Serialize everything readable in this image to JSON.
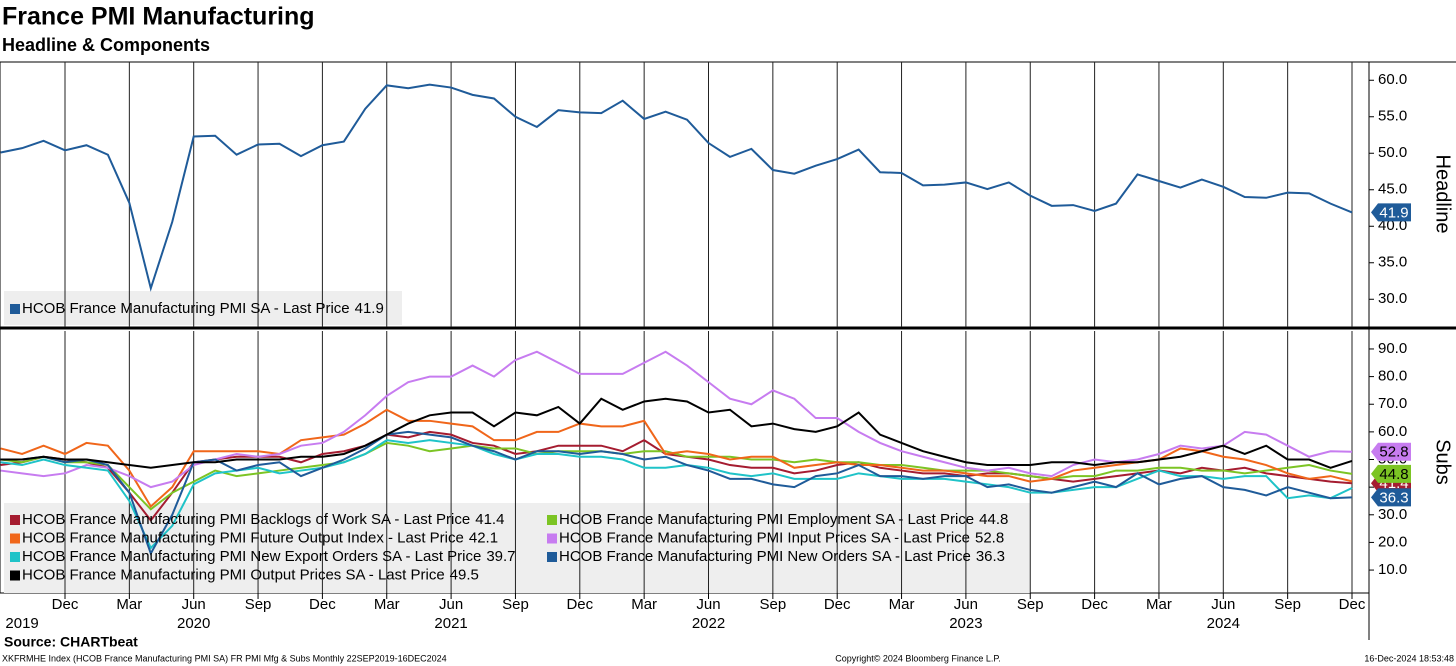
{
  "chart_data": [
    {
      "type": "line",
      "title": "France PMI Manufacturing",
      "subtitle": "Headline & Components",
      "y_axis_label": "Headline",
      "x": [
        "2019-09",
        "2019-10",
        "2019-11",
        "2019-12",
        "2020-01",
        "2020-02",
        "2020-03",
        "2020-04",
        "2020-05",
        "2020-06",
        "2020-07",
        "2020-08",
        "2020-09",
        "2020-10",
        "2020-11",
        "2020-12",
        "2021-01",
        "2021-02",
        "2021-03",
        "2021-04",
        "2021-05",
        "2021-06",
        "2021-07",
        "2021-08",
        "2021-09",
        "2021-10",
        "2021-11",
        "2021-12",
        "2022-01",
        "2022-02",
        "2022-03",
        "2022-04",
        "2022-05",
        "2022-06",
        "2022-07",
        "2022-08",
        "2022-09",
        "2022-10",
        "2022-11",
        "2022-12",
        "2023-01",
        "2023-02",
        "2023-03",
        "2023-04",
        "2023-05",
        "2023-06",
        "2023-07",
        "2023-08",
        "2023-09",
        "2023-10",
        "2023-11",
        "2023-12",
        "2024-01",
        "2024-02",
        "2024-03",
        "2024-04",
        "2024-05",
        "2024-06",
        "2024-07",
        "2024-08",
        "2024-09",
        "2024-10",
        "2024-11",
        "2024-12"
      ],
      "ylim": [
        26.2,
        62.5
      ],
      "yticks": [
        {
          "value": 30,
          "label": "30.0"
        },
        {
          "value": 35,
          "label": "35.0"
        },
        {
          "value": 40,
          "label": "40.0"
        },
        {
          "value": 45,
          "label": "45.0"
        },
        {
          "value": 50,
          "label": "50.0"
        },
        {
          "value": 55,
          "label": "55.0"
        },
        {
          "value": 60,
          "label": "60.0"
        }
      ],
      "series": [
        {
          "name": "HCOB France Manufacturing PMI SA - Last Price",
          "color": "#1f5b99",
          "last_label": true,
          "values": [
            50.1,
            50.7,
            51.7,
            50.4,
            51.1,
            49.8,
            43.2,
            31.5,
            40.6,
            52.3,
            52.4,
            49.8,
            51.2,
            51.3,
            49.6,
            51.1,
            51.6,
            56.1,
            59.3,
            58.9,
            59.4,
            59.0,
            58.0,
            57.5,
            55.0,
            53.6,
            55.9,
            55.6,
            55.5,
            57.2,
            54.7,
            55.7,
            54.6,
            51.4,
            49.5,
            50.6,
            47.7,
            47.2,
            48.3,
            49.2,
            50.5,
            47.4,
            47.3,
            45.6,
            45.7,
            46.0,
            45.1,
            46.0,
            44.2,
            42.8,
            42.9,
            42.1,
            43.1,
            47.1,
            46.2,
            45.3,
            46.4,
            45.4,
            44.0,
            43.9,
            44.6,
            44.5,
            43.1,
            41.9
          ]
        }
      ]
    },
    {
      "type": "line",
      "y_axis_label": "Subs",
      "x": [
        "2019-09",
        "2019-10",
        "2019-11",
        "2019-12",
        "2020-01",
        "2020-02",
        "2020-03",
        "2020-04",
        "2020-05",
        "2020-06",
        "2020-07",
        "2020-08",
        "2020-09",
        "2020-10",
        "2020-11",
        "2020-12",
        "2021-01",
        "2021-02",
        "2021-03",
        "2021-04",
        "2021-05",
        "2021-06",
        "2021-07",
        "2021-08",
        "2021-09",
        "2021-10",
        "2021-11",
        "2021-12",
        "2022-01",
        "2022-02",
        "2022-03",
        "2022-04",
        "2022-05",
        "2022-06",
        "2022-07",
        "2022-08",
        "2022-09",
        "2022-10",
        "2022-11",
        "2022-12",
        "2023-01",
        "2023-02",
        "2023-03",
        "2023-04",
        "2023-05",
        "2023-06",
        "2023-07",
        "2023-08",
        "2023-09",
        "2023-10",
        "2023-11",
        "2023-12",
        "2024-01",
        "2024-02",
        "2024-03",
        "2024-04",
        "2024-05",
        "2024-06",
        "2024-07",
        "2024-08",
        "2024-09",
        "2024-10",
        "2024-11",
        "2024-12"
      ],
      "xticks": [
        {
          "value": "2019-12",
          "label": "Dec"
        },
        {
          "value": "2020-03",
          "label": "Mar"
        },
        {
          "value": "2020-06",
          "label": "Jun"
        },
        {
          "value": "2020-09",
          "label": "Sep"
        },
        {
          "value": "2020-12",
          "label": "Dec"
        },
        {
          "value": "2021-03",
          "label": "Mar"
        },
        {
          "value": "2021-06",
          "label": "Jun"
        },
        {
          "value": "2021-09",
          "label": "Sep"
        },
        {
          "value": "2021-12",
          "label": "Dec"
        },
        {
          "value": "2022-03",
          "label": "Mar"
        },
        {
          "value": "2022-06",
          "label": "Jun"
        },
        {
          "value": "2022-09",
          "label": "Sep"
        },
        {
          "value": "2022-12",
          "label": "Dec"
        },
        {
          "value": "2023-03",
          "label": "Mar"
        },
        {
          "value": "2023-06",
          "label": "Jun"
        },
        {
          "value": "2023-09",
          "label": "Sep"
        },
        {
          "value": "2023-12",
          "label": "Dec"
        },
        {
          "value": "2024-03",
          "label": "Mar"
        },
        {
          "value": "2024-06",
          "label": "Jun"
        },
        {
          "value": "2024-09",
          "label": "Sep"
        },
        {
          "value": "2024-12",
          "label": "Dec"
        }
      ],
      "xyears": [
        {
          "value": "2019-10",
          "label": "2019"
        },
        {
          "value": "2020-06",
          "label": "2020"
        },
        {
          "value": "2021-06",
          "label": "2021"
        },
        {
          "value": "2022-06",
          "label": "2022"
        },
        {
          "value": "2023-06",
          "label": "2023"
        },
        {
          "value": "2024-06",
          "label": "2024"
        }
      ],
      "ylim": [
        1.7,
        96.5
      ],
      "yticks": [
        {
          "value": 10,
          "label": "10.0"
        },
        {
          "value": 20,
          "label": "20.0"
        },
        {
          "value": 30,
          "label": "30.0"
        },
        {
          "value": 40,
          "label": "40.0"
        },
        {
          "value": 50,
          "label": "50.0"
        },
        {
          "value": 60,
          "label": "60.0"
        },
        {
          "value": 70,
          "label": "70.0"
        },
        {
          "value": 80,
          "label": "80.0"
        },
        {
          "value": 90,
          "label": "90.0"
        }
      ],
      "series": [
        {
          "name": "HCOB France Manufacturing PMI Backlogs of Work SA - Last Price",
          "color": "#a51c30",
          "last_label": true,
          "values": [
            48,
            49,
            51,
            50,
            49,
            47,
            38,
            28,
            38,
            49,
            50,
            51,
            51,
            51,
            49,
            52,
            53,
            55,
            59,
            58,
            60,
            59,
            56,
            55,
            52,
            53,
            55,
            55,
            55,
            53,
            57,
            52,
            51,
            50,
            48,
            47,
            47,
            45,
            46,
            48,
            49,
            47,
            46,
            45,
            45,
            44,
            45,
            45,
            44,
            43,
            42,
            43,
            44,
            45,
            46,
            45,
            47,
            46,
            47,
            45,
            44,
            43,
            42,
            41.4
          ]
        },
        {
          "name": "HCOB France Manufacturing PMI Employment SA - Last Price",
          "color": "#7cc424",
          "last_label": true,
          "values": [
            50,
            49,
            51,
            49,
            49,
            48,
            40,
            32,
            38,
            42,
            46,
            44,
            45,
            46,
            47,
            48,
            49,
            52,
            56,
            55,
            53,
            54,
            55,
            54,
            54,
            52,
            53,
            53,
            53,
            52,
            53,
            53,
            51,
            51,
            51,
            50,
            50,
            49,
            50,
            49,
            49,
            48,
            48,
            47,
            46,
            46,
            46,
            45,
            44,
            43,
            44,
            44,
            46,
            46,
            47,
            47,
            46,
            46,
            45,
            46,
            47,
            48,
            46,
            44.8
          ]
        },
        {
          "name": "HCOB France Manufacturing PMI Future Output Index - Last Price",
          "color": "#f0661a",
          "last_label": false,
          "values": [
            54,
            52,
            55,
            52,
            56,
            55,
            46,
            33,
            40,
            53,
            53,
            53,
            53,
            52,
            57,
            58,
            59,
            63,
            68,
            64,
            64,
            63,
            62,
            57,
            57,
            60,
            60,
            63,
            62,
            62,
            64,
            52,
            53,
            52,
            50,
            51,
            51,
            47,
            48,
            49,
            48,
            48,
            47,
            46,
            46,
            45,
            44,
            44,
            42,
            43,
            46,
            47,
            48,
            49,
            50,
            54,
            53,
            51,
            50,
            48,
            45,
            43,
            44,
            42.1
          ]
        },
        {
          "name": "HCOB France Manufacturing PMI Input Prices SA - Last Price",
          "color": "#c77cf0",
          "last_label": true,
          "values": [
            46,
            45,
            44,
            45,
            48,
            47,
            44,
            40,
            42,
            48,
            50,
            52,
            51,
            52,
            55,
            56,
            60,
            66,
            73,
            78,
            80,
            80,
            84,
            80,
            86,
            89,
            85,
            81,
            81,
            81,
            85,
            89,
            84,
            78,
            72,
            70,
            75,
            72,
            65,
            65,
            60,
            56,
            53,
            51,
            49,
            47,
            46,
            47,
            45,
            44,
            48,
            50,
            49,
            50,
            52,
            55,
            54,
            55,
            60,
            59,
            55,
            51,
            53,
            52.8
          ]
        },
        {
          "name": "HCOB France Manufacturing PMI New Export Orders SA - Last Price",
          "color": "#1fc3c8",
          "last_label": false,
          "values": [
            49,
            48,
            50,
            48,
            47,
            46,
            35,
            18,
            26,
            41,
            45,
            46,
            47,
            45,
            46,
            47,
            49,
            52,
            57,
            56,
            57,
            56,
            55,
            52,
            50,
            52,
            52,
            51,
            51,
            50,
            47,
            47,
            48,
            47,
            45,
            44,
            45,
            43,
            43,
            43,
            45,
            44,
            43,
            43,
            43,
            42,
            41,
            40,
            38,
            38,
            39,
            40,
            40,
            43,
            46,
            44,
            44,
            43,
            44,
            44,
            36,
            37,
            36,
            39.7
          ]
        },
        {
          "name": "HCOB France Manufacturing PMI New Orders SA - Last Price",
          "color": "#1f5b99",
          "last_label": true,
          "values": [
            50,
            50,
            51,
            49,
            50,
            48,
            38,
            16,
            30,
            49,
            50,
            46,
            48,
            49,
            44,
            47,
            50,
            54,
            59,
            60,
            59,
            58,
            55,
            53,
            50,
            53,
            53,
            52,
            53,
            52,
            50,
            51,
            48,
            46,
            43,
            43,
            41,
            40,
            44,
            45,
            48,
            44,
            44,
            43,
            44,
            44,
            40,
            41,
            39,
            38,
            40,
            42,
            40,
            45,
            41,
            43,
            44,
            40,
            39,
            37,
            40,
            38,
            36,
            36.3
          ]
        },
        {
          "name": "HCOB France Manufacturing PMI Output Prices SA - Last Price",
          "color": "#000000",
          "last_label": false,
          "values": [
            50,
            50,
            51,
            50,
            50,
            49,
            48,
            47,
            48,
            49,
            49,
            50,
            50,
            50,
            51,
            51,
            52,
            55,
            59,
            63,
            66,
            67,
            67,
            62,
            67,
            66,
            69,
            63,
            72,
            68,
            71,
            72,
            71,
            67,
            68,
            62,
            63,
            61,
            60,
            62,
            67,
            59,
            56,
            53,
            51,
            49,
            48,
            48,
            48,
            49,
            49,
            48,
            49,
            49,
            50,
            51,
            53,
            55,
            52,
            55,
            50,
            50,
            47,
            49.5
          ]
        }
      ]
    }
  ],
  "footer": {
    "source": "Source: CHARTbeat",
    "left": "XKFRMHE Index (HCOB France Manufacturing PMI SA) FR PMI Mfg & Subs  Monthly 22SEP2019-16DEC2024",
    "center": "Copyright© 2024 Bloomberg Finance L.P.",
    "right": "16-Dec-2024 18:53:48"
  }
}
